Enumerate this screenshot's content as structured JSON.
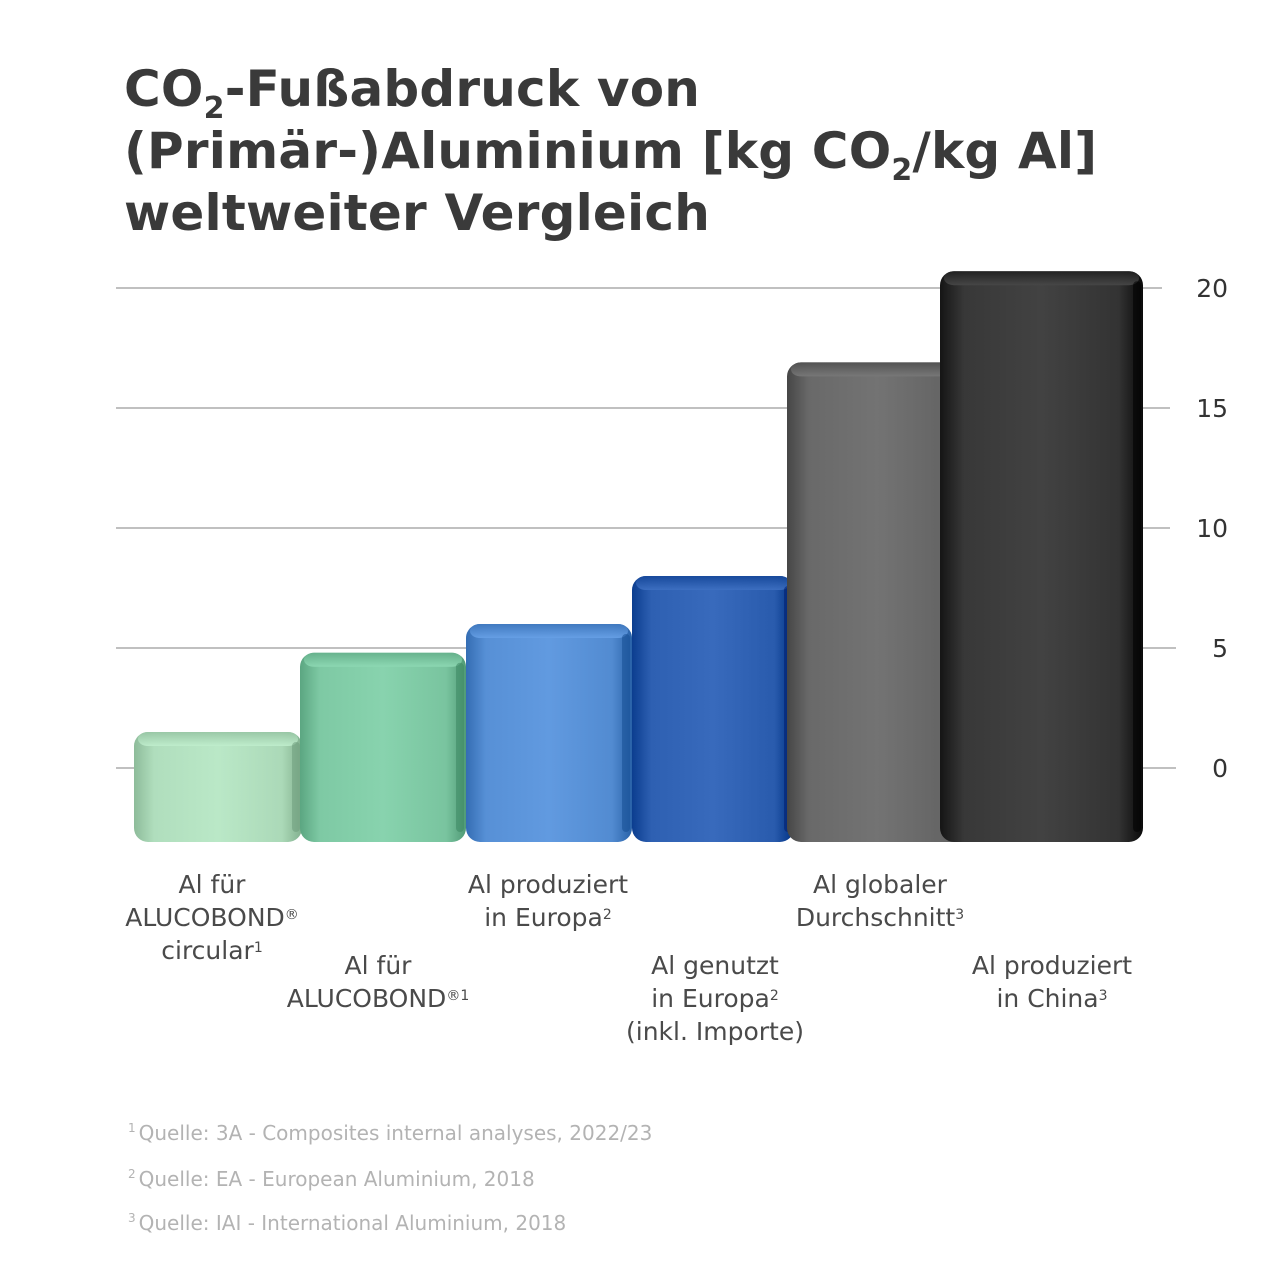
{
  "title": {
    "line1_a": "CO",
    "line1_sub": "2",
    "line1_b": "-Fußabdruck von",
    "line2_a": "(Primär-)Aluminium [kg CO",
    "line2_sub": "2",
    "line2_b": "/kg Al]",
    "line3": "weltweiter Vergleich"
  },
  "chart_data": {
    "type": "bar",
    "title": "CO2-Fußabdruck von (Primär-)Aluminium [kg CO2/kg Al] weltweiter Vergleich",
    "xlabel": "",
    "ylabel": "",
    "ylim": [
      0,
      20
    ],
    "yticks": [
      0,
      5,
      10,
      15,
      20
    ],
    "ytick_labels": [
      "0",
      "5",
      "10",
      "15",
      "20"
    ],
    "grid": true,
    "axis_side": "right",
    "categories": [
      "Al für ALUCOBOND® circular",
      "Al für ALUCOBOND®",
      "Al produziert in Europa",
      "Al genutzt in Europa (inkl. Importe)",
      "Al globaler Durchschnitt",
      "Al produziert in China"
    ],
    "values": [
      1.5,
      4.8,
      6.0,
      8.0,
      16.9,
      20.7
    ],
    "colors": [
      "#a6d4b3",
      "#74bf9a",
      "#4d86cc",
      "#2456a8",
      "#5f5f5f",
      "#2e2e2e"
    ]
  },
  "labels": [
    {
      "lines": [
        {
          "t": "Al für"
        },
        {
          "t": "ALUCOBOND",
          "s": "®"
        },
        {
          "t": "circular",
          "s": "1"
        }
      ]
    },
    {
      "lines": [
        {
          "t": "Al für"
        },
        {
          "t": "ALUCOBOND",
          "s": "®1"
        }
      ]
    },
    {
      "lines": [
        {
          "t": "Al produziert"
        },
        {
          "t": "in Europa",
          "s": "2"
        }
      ]
    },
    {
      "lines": [
        {
          "t": "Al genutzt"
        },
        {
          "t": "in Europa",
          "s": "2"
        },
        {
          "t": "(inkl. Importe)"
        }
      ]
    },
    {
      "lines": [
        {
          "t": "Al globaler"
        },
        {
          "t": "Durchschnitt",
          "s": "3"
        }
      ]
    },
    {
      "lines": [
        {
          "t": "Al produziert"
        },
        {
          "t": "in China",
          "s": "3"
        }
      ]
    }
  ],
  "footnotes": [
    {
      "mark": "1",
      "text": "Quelle: 3A - Composites internal analyses, 2022/23"
    },
    {
      "mark": "2",
      "text": "Quelle: EA - European Aluminium, 2018"
    },
    {
      "mark": "3",
      "text": "Quelle: IAI - International Aluminium, 2018"
    }
  ]
}
